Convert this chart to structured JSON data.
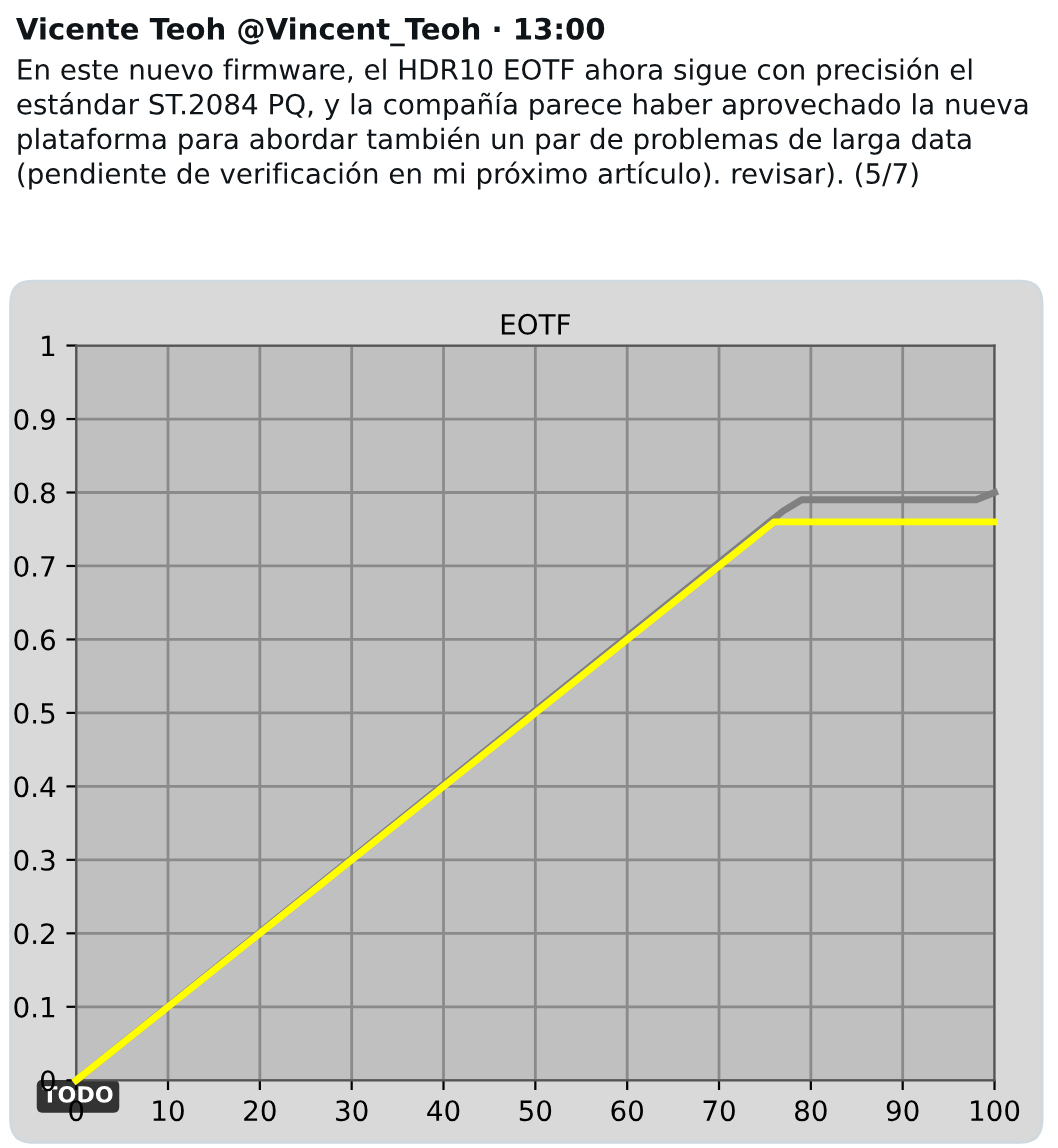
{
  "chart_data": {
    "type": "line",
    "title": "EOTF",
    "annotations": [
      "Vicente Teoh @Vincent_Teoh · 13:00",
      "En este nuevo firmware, el HDR10 EOTF ahora sigue con precisión el estándar ST.2084 PQ, y la compañía parece haber aprovechado la nueva plataforma para abordar también un par de problemas de larga data (pendiente de verificación en mi próximo artículo). revisar). (5/7)",
      "TODO"
    ],
    "series": [
      {
        "color": "#808080",
        "x": [
          0,
          77,
          79,
          98,
          100
        ],
        "values": [
          0,
          0.775,
          0.79,
          0.79,
          0.8
        ]
      },
      {
        "color": "#ffff00",
        "x": [
          0,
          76,
          100
        ],
        "values": [
          0,
          0.76,
          0.76
        ]
      }
    ],
    "xlim": [
      0,
      100
    ],
    "xticks": [
      0,
      10,
      20,
      30,
      40,
      50,
      60,
      70,
      80,
      90,
      100
    ],
    "ylim": [
      0,
      1
    ],
    "yticks": [
      0,
      0.1,
      0.2,
      0.3,
      0.4,
      0.5,
      0.6,
      0.7,
      0.8,
      0.9,
      1
    ],
    "grid": true,
    "marker": "none",
    "line_style": "solid"
  }
}
